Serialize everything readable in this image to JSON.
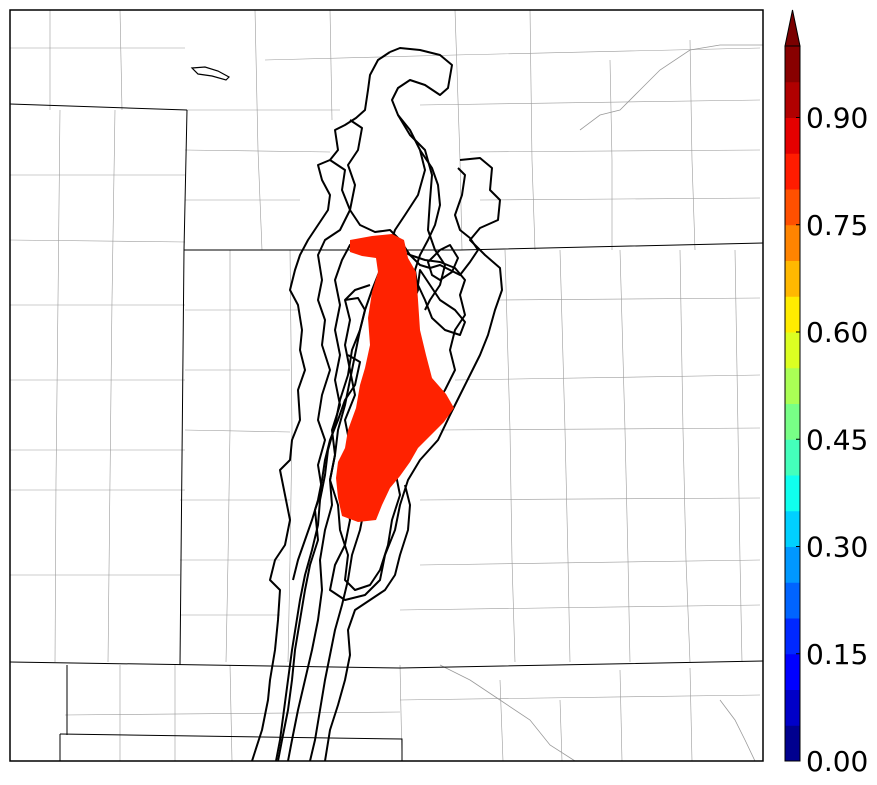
{
  "map": {
    "type": "probability-swath-map",
    "region": "US Central Plains county map",
    "shaded_probability": 0.88,
    "shaded_color": "#ff2200",
    "member_outline_count": 10,
    "outline_color": "#000000"
  },
  "colorbar": {
    "range": [
      0.0,
      1.0
    ],
    "step": 0.05,
    "extend": "max",
    "tick_labels": [
      "0.00",
      "0.15",
      "0.30",
      "0.45",
      "0.60",
      "0.75",
      "0.90"
    ],
    "colors": [
      "#00008f",
      "#0000c8",
      "#0000ff",
      "#0028ff",
      "#0064ff",
      "#0098ff",
      "#00d0ff",
      "#10ffee",
      "#44ffbb",
      "#78ff86",
      "#aaff55",
      "#dcff22",
      "#ffec00",
      "#ffb800",
      "#ff8400",
      "#ff5000",
      "#ff1c00",
      "#e40000",
      "#b00000",
      "#880000"
    ],
    "extend_color": "#7a0000"
  }
}
